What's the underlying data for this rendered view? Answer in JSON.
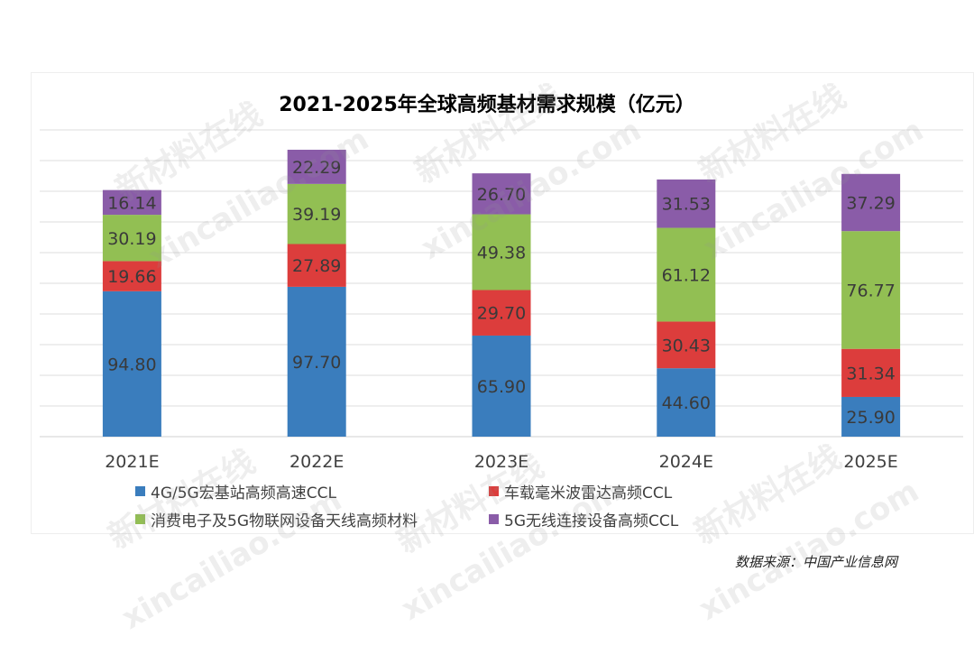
{
  "chart_data": {
    "type": "bar",
    "stacked": true,
    "title": "2021-2025年全球高频基材需求规模（亿元）",
    "categories": [
      "2021E",
      "2022E",
      "2023E",
      "2024E",
      "2025E"
    ],
    "series": [
      {
        "name": "4G/5G宏基站高频高速CCL",
        "color": "#3a7dbd",
        "values": [
          94.8,
          97.7,
          65.9,
          44.6,
          25.9
        ]
      },
      {
        "name": "车载毫米波雷达高频CCL",
        "color": "#dc3d3c",
        "values": [
          19.66,
          27.89,
          29.7,
          30.43,
          31.34
        ]
      },
      {
        "name": "消费电子及5G物联网设备天线高频材料",
        "color": "#92bf53",
        "values": [
          30.19,
          39.19,
          49.38,
          61.12,
          76.77
        ]
      },
      {
        "name": "5G无线连接设备高频CCL",
        "color": "#8a5ca8",
        "values": [
          16.14,
          22.29,
          26.7,
          31.53,
          37.29
        ]
      }
    ],
    "labels": [
      [
        "94.80",
        "97.70",
        "65.90",
        "44.60",
        "25.90"
      ],
      [
        "19.66",
        "27.89",
        "29.70",
        "30.43",
        "31.34"
      ],
      [
        "30.19",
        "39.19",
        "49.38",
        "61.12",
        "76.77"
      ],
      [
        "16.14",
        "22.29",
        "26.70",
        "31.53",
        "37.29"
      ]
    ],
    "ylim": [
      0,
      200
    ],
    "grid": true,
    "legend_position": "bottom"
  },
  "source": "数据来源：中国产业信息网",
  "watermarks": {
    "brand": "新材料在线",
    "url": "xincailiao.com"
  }
}
